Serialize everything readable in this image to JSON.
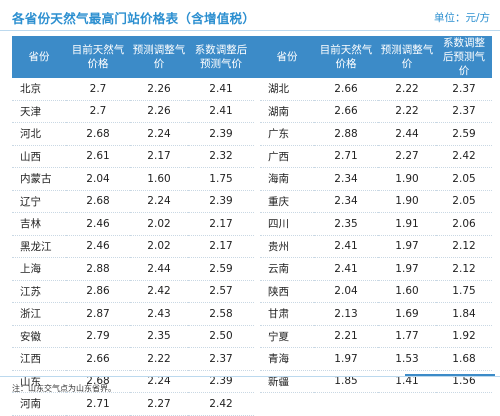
{
  "title": "各省份天然气最高门站价格表（含增值税）",
  "unit": "单位：元/方",
  "headers": {
    "province": "省份",
    "current": "目前天然气价格",
    "expected": "预测调整气价",
    "after": "系数调整后预测气价"
  },
  "left_rows": [
    {
      "province": "北京",
      "current": "2.7",
      "expected": "2.26",
      "after": "2.41"
    },
    {
      "province": "天津",
      "current": "2.7",
      "expected": "2.26",
      "after": "2.41"
    },
    {
      "province": "河北",
      "current": "2.68",
      "expected": "2.24",
      "after": "2.39"
    },
    {
      "province": "山西",
      "current": "2.61",
      "expected": "2.17",
      "after": "2.32"
    },
    {
      "province": "内蒙古",
      "current": "2.04",
      "expected": "1.60",
      "after": "1.75"
    },
    {
      "province": "辽宁",
      "current": "2.68",
      "expected": "2.24",
      "after": "2.39"
    },
    {
      "province": "吉林",
      "current": "2.46",
      "expected": "2.02",
      "after": "2.17"
    },
    {
      "province": "黑龙江",
      "current": "2.46",
      "expected": "2.02",
      "after": "2.17"
    },
    {
      "province": "上海",
      "current": "2.88",
      "expected": "2.44",
      "after": "2.59"
    },
    {
      "province": "江苏",
      "current": "2.86",
      "expected": "2.42",
      "after": "2.57"
    },
    {
      "province": "浙江",
      "current": "2.87",
      "expected": "2.43",
      "after": "2.58"
    },
    {
      "province": "安徽",
      "current": "2.79",
      "expected": "2.35",
      "after": "2.50"
    },
    {
      "province": "江西",
      "current": "2.66",
      "expected": "2.22",
      "after": "2.37"
    },
    {
      "province": "山东",
      "current": "2.68",
      "expected": "2.24",
      "after": "2.39"
    },
    {
      "province": "河南",
      "current": "2.71",
      "expected": "2.27",
      "after": "2.42"
    }
  ],
  "right_rows": [
    {
      "province": "湖北",
      "current": "2.66",
      "expected": "2.22",
      "after": "2.37"
    },
    {
      "province": "湖南",
      "current": "2.66",
      "expected": "2.22",
      "after": "2.37"
    },
    {
      "province": "广东",
      "current": "2.88",
      "expected": "2.44",
      "after": "2.59"
    },
    {
      "province": "广西",
      "current": "2.71",
      "expected": "2.27",
      "after": "2.42"
    },
    {
      "province": "海南",
      "current": "2.34",
      "expected": "1.90",
      "after": "2.05"
    },
    {
      "province": "重庆",
      "current": "2.34",
      "expected": "1.90",
      "after": "2.05"
    },
    {
      "province": "四川",
      "current": "2.35",
      "expected": "1.91",
      "after": "2.06"
    },
    {
      "province": "贵州",
      "current": "2.41",
      "expected": "1.97",
      "after": "2.12"
    },
    {
      "province": "云南",
      "current": "2.41",
      "expected": "1.97",
      "after": "2.12"
    },
    {
      "province": "陕西",
      "current": "2.04",
      "expected": "1.60",
      "after": "1.75"
    },
    {
      "province": "甘肃",
      "current": "2.13",
      "expected": "1.69",
      "after": "1.84"
    },
    {
      "province": "宁夏",
      "current": "2.21",
      "expected": "1.77",
      "after": "1.92"
    },
    {
      "province": "青海",
      "current": "1.97",
      "expected": "1.53",
      "after": "1.68"
    },
    {
      "province": "新疆",
      "current": "1.85",
      "expected": "1.41",
      "after": "1.56"
    }
  ],
  "footnote": "注：山东交气点为山东省界。",
  "colors": {
    "accent": "#2c8fd0",
    "header_bg": "#3c8bc8"
  }
}
